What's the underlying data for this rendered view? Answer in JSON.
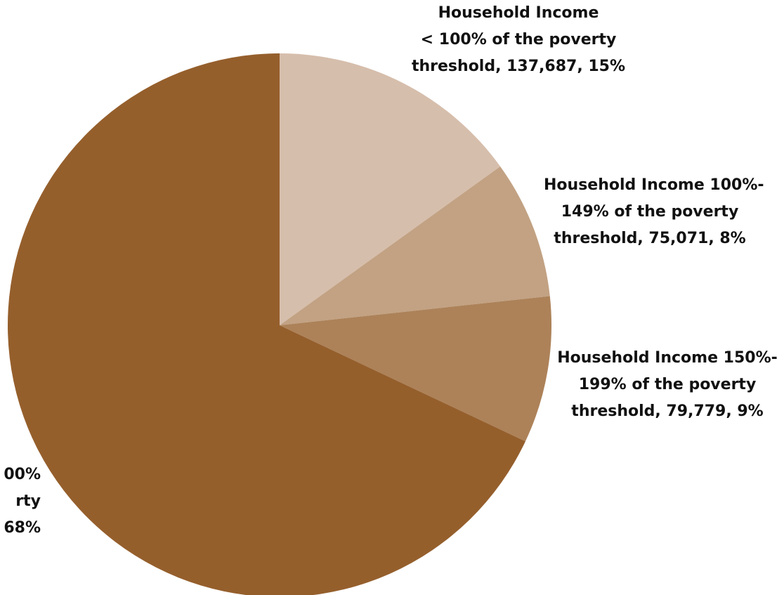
{
  "chart_data": {
    "type": "pie",
    "start_angle_deg": 0,
    "direction": "clockwise",
    "slices": [
      {
        "label_lines": [
          "Household Income",
          "< 100% of the poverty",
          "threshold, 137,687, 15%"
        ],
        "value": 137687,
        "percent": "15%",
        "color": "#D6BEAC"
      },
      {
        "label_lines": [
          "Household Income 100%-",
          "149% of the poverty",
          "threshold, 75,071, 8%"
        ],
        "value": 75071,
        "percent": "8%",
        "color": "#C2A283"
      },
      {
        "label_lines": [
          "Household Income 150%-",
          "199% of the poverty",
          "threshold, 79,779, 9%"
        ],
        "value": 79779,
        "percent": "9%",
        "color": "#AD8259"
      },
      {
        "label_lines": [
          "00%",
          "rty",
          "68%"
        ],
        "value": 621000,
        "percent": "68%",
        "color": "#955F2C"
      }
    ]
  }
}
